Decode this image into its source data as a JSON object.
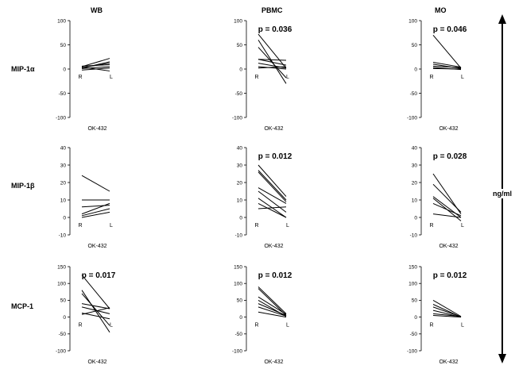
{
  "columns": [
    "WB",
    "PBMC",
    "MO"
  ],
  "rows": [
    "MIP-1α",
    "MIP-1β",
    "MCP-1"
  ],
  "unit_label": "ng/ml",
  "chart_data": [
    {
      "type": "line",
      "panel": "MIP-1α-WB",
      "row": 0,
      "col": 0,
      "ylim": [
        -100,
        100
      ],
      "yticks": [
        100,
        50,
        0,
        -50,
        -100
      ],
      "categories": [
        "R",
        "L"
      ],
      "stimulus": "OK-432",
      "pvalue": "",
      "series": [
        {
          "values": [
            5,
            22
          ]
        },
        {
          "values": [
            2,
            15
          ]
        },
        {
          "values": [
            6,
            9
          ]
        },
        {
          "values": [
            1,
            5
          ]
        },
        {
          "values": [
            -2,
            2
          ]
        },
        {
          "values": [
            4,
            -4
          ]
        },
        {
          "values": [
            3,
            12
          ]
        }
      ]
    },
    {
      "type": "line",
      "panel": "MIP-1α-PBMC",
      "row": 0,
      "col": 1,
      "ylim": [
        -100,
        100
      ],
      "yticks": [
        100,
        50,
        0,
        -50,
        -100
      ],
      "categories": [
        "R",
        "L"
      ],
      "stimulus": "OK-432",
      "pvalue": "p = 0.036",
      "series": [
        {
          "values": [
            72,
            2
          ]
        },
        {
          "values": [
            60,
            -30
          ]
        },
        {
          "values": [
            45,
            -18
          ]
        },
        {
          "values": [
            20,
            18
          ]
        },
        {
          "values": [
            20,
            8
          ]
        },
        {
          "values": [
            12,
            2
          ]
        },
        {
          "values": [
            5,
            0
          ]
        },
        {
          "values": [
            2,
            5
          ]
        }
      ]
    },
    {
      "type": "line",
      "panel": "MIP-1α-MO",
      "row": 0,
      "col": 2,
      "ylim": [
        -100,
        100
      ],
      "yticks": [
        100,
        50,
        0,
        -50,
        -100
      ],
      "categories": [
        "R",
        "L"
      ],
      "stimulus": "OK-432",
      "pvalue": "p = 0.046",
      "series": [
        {
          "values": [
            70,
            2
          ]
        },
        {
          "values": [
            14,
            4
          ]
        },
        {
          "values": [
            10,
            1
          ]
        },
        {
          "values": [
            6,
            3
          ]
        },
        {
          "values": [
            3,
            -1
          ]
        },
        {
          "values": [
            1,
            0
          ]
        }
      ]
    },
    {
      "type": "line",
      "panel": "MIP-1β-WB",
      "row": 1,
      "col": 0,
      "ylim": [
        -10,
        40
      ],
      "yticks": [
        40,
        30,
        20,
        10,
        0,
        -10
      ],
      "categories": [
        "R",
        "L"
      ],
      "stimulus": "OK-432",
      "pvalue": "",
      "series": [
        {
          "values": [
            24,
            15
          ]
        },
        {
          "values": [
            10,
            10
          ]
        },
        {
          "values": [
            6,
            7
          ]
        },
        {
          "values": [
            2,
            8
          ]
        },
        {
          "values": [
            1,
            5
          ]
        },
        {
          "values": [
            0,
            3
          ]
        }
      ]
    },
    {
      "type": "line",
      "panel": "MIP-1β-PBMC",
      "row": 1,
      "col": 1,
      "ylim": [
        -10,
        40
      ],
      "yticks": [
        40,
        30,
        20,
        10,
        0,
        -10
      ],
      "categories": [
        "R",
        "L"
      ],
      "stimulus": "OK-432",
      "pvalue": "p = 0.012",
      "series": [
        {
          "values": [
            30,
            12
          ]
        },
        {
          "values": [
            27,
            10
          ]
        },
        {
          "values": [
            26,
            9
          ]
        },
        {
          "values": [
            17,
            8
          ]
        },
        {
          "values": [
            15,
            3
          ]
        },
        {
          "values": [
            11,
            0
          ]
        },
        {
          "values": [
            8,
            0
          ]
        },
        {
          "values": [
            5,
            6
          ]
        }
      ]
    },
    {
      "type": "line",
      "panel": "MIP-1β-MO",
      "row": 1,
      "col": 2,
      "ylim": [
        -10,
        40
      ],
      "yticks": [
        40,
        30,
        20,
        10,
        0,
        -10
      ],
      "categories": [
        "R",
        "L"
      ],
      "stimulus": "OK-432",
      "pvalue": "p = 0.028",
      "series": [
        {
          "values": [
            25,
            2
          ]
        },
        {
          "values": [
            19,
            3
          ]
        },
        {
          "values": [
            12,
            0
          ]
        },
        {
          "values": [
            11,
            -2
          ]
        },
        {
          "values": [
            8,
            1
          ]
        },
        {
          "values": [
            2,
            0
          ]
        }
      ]
    },
    {
      "type": "line",
      "panel": "MCP-1-WB",
      "row": 2,
      "col": 0,
      "ylim": [
        -100,
        150
      ],
      "yticks": [
        150,
        100,
        50,
        0,
        -50,
        -100
      ],
      "categories": [
        "R",
        "L"
      ],
      "stimulus": "OK-432",
      "pvalue": "p = 0.017",
      "series": [
        {
          "values": [
            125,
            25
          ]
        },
        {
          "values": [
            80,
            -45
          ]
        },
        {
          "values": [
            70,
            -25
          ]
        },
        {
          "values": [
            40,
            25
          ]
        },
        {
          "values": [
            30,
            10
          ]
        },
        {
          "values": [
            12,
            -5
          ]
        },
        {
          "values": [
            8,
            28
          ]
        }
      ]
    },
    {
      "type": "line",
      "panel": "MCP-1-PBMC",
      "row": 2,
      "col": 1,
      "ylim": [
        -100,
        150
      ],
      "yticks": [
        150,
        100,
        50,
        0,
        -50,
        -100
      ],
      "categories": [
        "R",
        "L"
      ],
      "stimulus": "OK-432",
      "pvalue": "p = 0.012",
      "series": [
        {
          "values": [
            90,
            10
          ]
        },
        {
          "values": [
            85,
            5
          ]
        },
        {
          "values": [
            60,
            8
          ]
        },
        {
          "values": [
            50,
            2
          ]
        },
        {
          "values": [
            40,
            5
          ]
        },
        {
          "values": [
            30,
            3
          ]
        },
        {
          "values": [
            15,
            0
          ]
        }
      ]
    },
    {
      "type": "line",
      "panel": "MCP-1-MO",
      "row": 2,
      "col": 2,
      "ylim": [
        -100,
        150
      ],
      "yticks": [
        150,
        100,
        50,
        0,
        -50,
        -100
      ],
      "categories": [
        "R",
        "L"
      ],
      "stimulus": "OK-432",
      "pvalue": "p = 0.012",
      "series": [
        {
          "values": [
            50,
            2
          ]
        },
        {
          "values": [
            38,
            0
          ]
        },
        {
          "values": [
            30,
            1
          ]
        },
        {
          "values": [
            20,
            0
          ]
        },
        {
          "values": [
            10,
            2
          ]
        },
        {
          "values": [
            5,
            0
          ]
        }
      ]
    }
  ]
}
